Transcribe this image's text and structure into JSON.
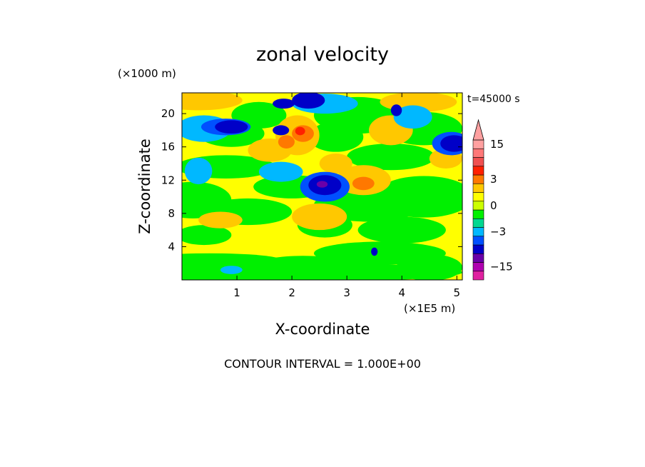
{
  "chart_data": {
    "type": "heatmap",
    "title": "zonal velocity",
    "subtitle": "t=45000 s",
    "xlabel": "X-coordinate",
    "ylabel": "Z-coordinate",
    "x_unit": "(×1E5 m)",
    "y_unit": "(×1000 m)",
    "xlim": [
      0,
      5.1
    ],
    "ylim": [
      0,
      22.5
    ],
    "x_ticks": [
      "1",
      "2",
      "3",
      "4",
      "5"
    ],
    "x_tick_values": [
      1,
      2,
      3,
      4,
      5
    ],
    "y_ticks": [
      "4",
      "8",
      "12",
      "16",
      "20"
    ],
    "y_tick_values": [
      4,
      8,
      12,
      16,
      20
    ],
    "colorbar": {
      "levels": [
        -18,
        -15,
        -12,
        -9,
        -6,
        -3,
        -2,
        -1,
        0,
        1,
        2,
        3,
        6,
        9,
        12,
        15,
        18
      ],
      "colors": [
        "#e020a0",
        "#b000b0",
        "#6a00a8",
        "#0000c8",
        "#0050ff",
        "#00b8ff",
        "#00d890",
        "#00f000",
        "#ccff00",
        "#ffff00",
        "#ffc800",
        "#ff7800",
        "#ff2000",
        "#f05050",
        "#ff7878",
        "#ffa0a0"
      ],
      "tick_labels": [
        "15",
        "3",
        "0",
        "−3",
        "−15"
      ],
      "tick_values": [
        15,
        3,
        0,
        -3,
        -15
      ],
      "extend": "max"
    },
    "contour_interval_text": "CONTOUR INTERVAL = 1.000E+00"
  }
}
